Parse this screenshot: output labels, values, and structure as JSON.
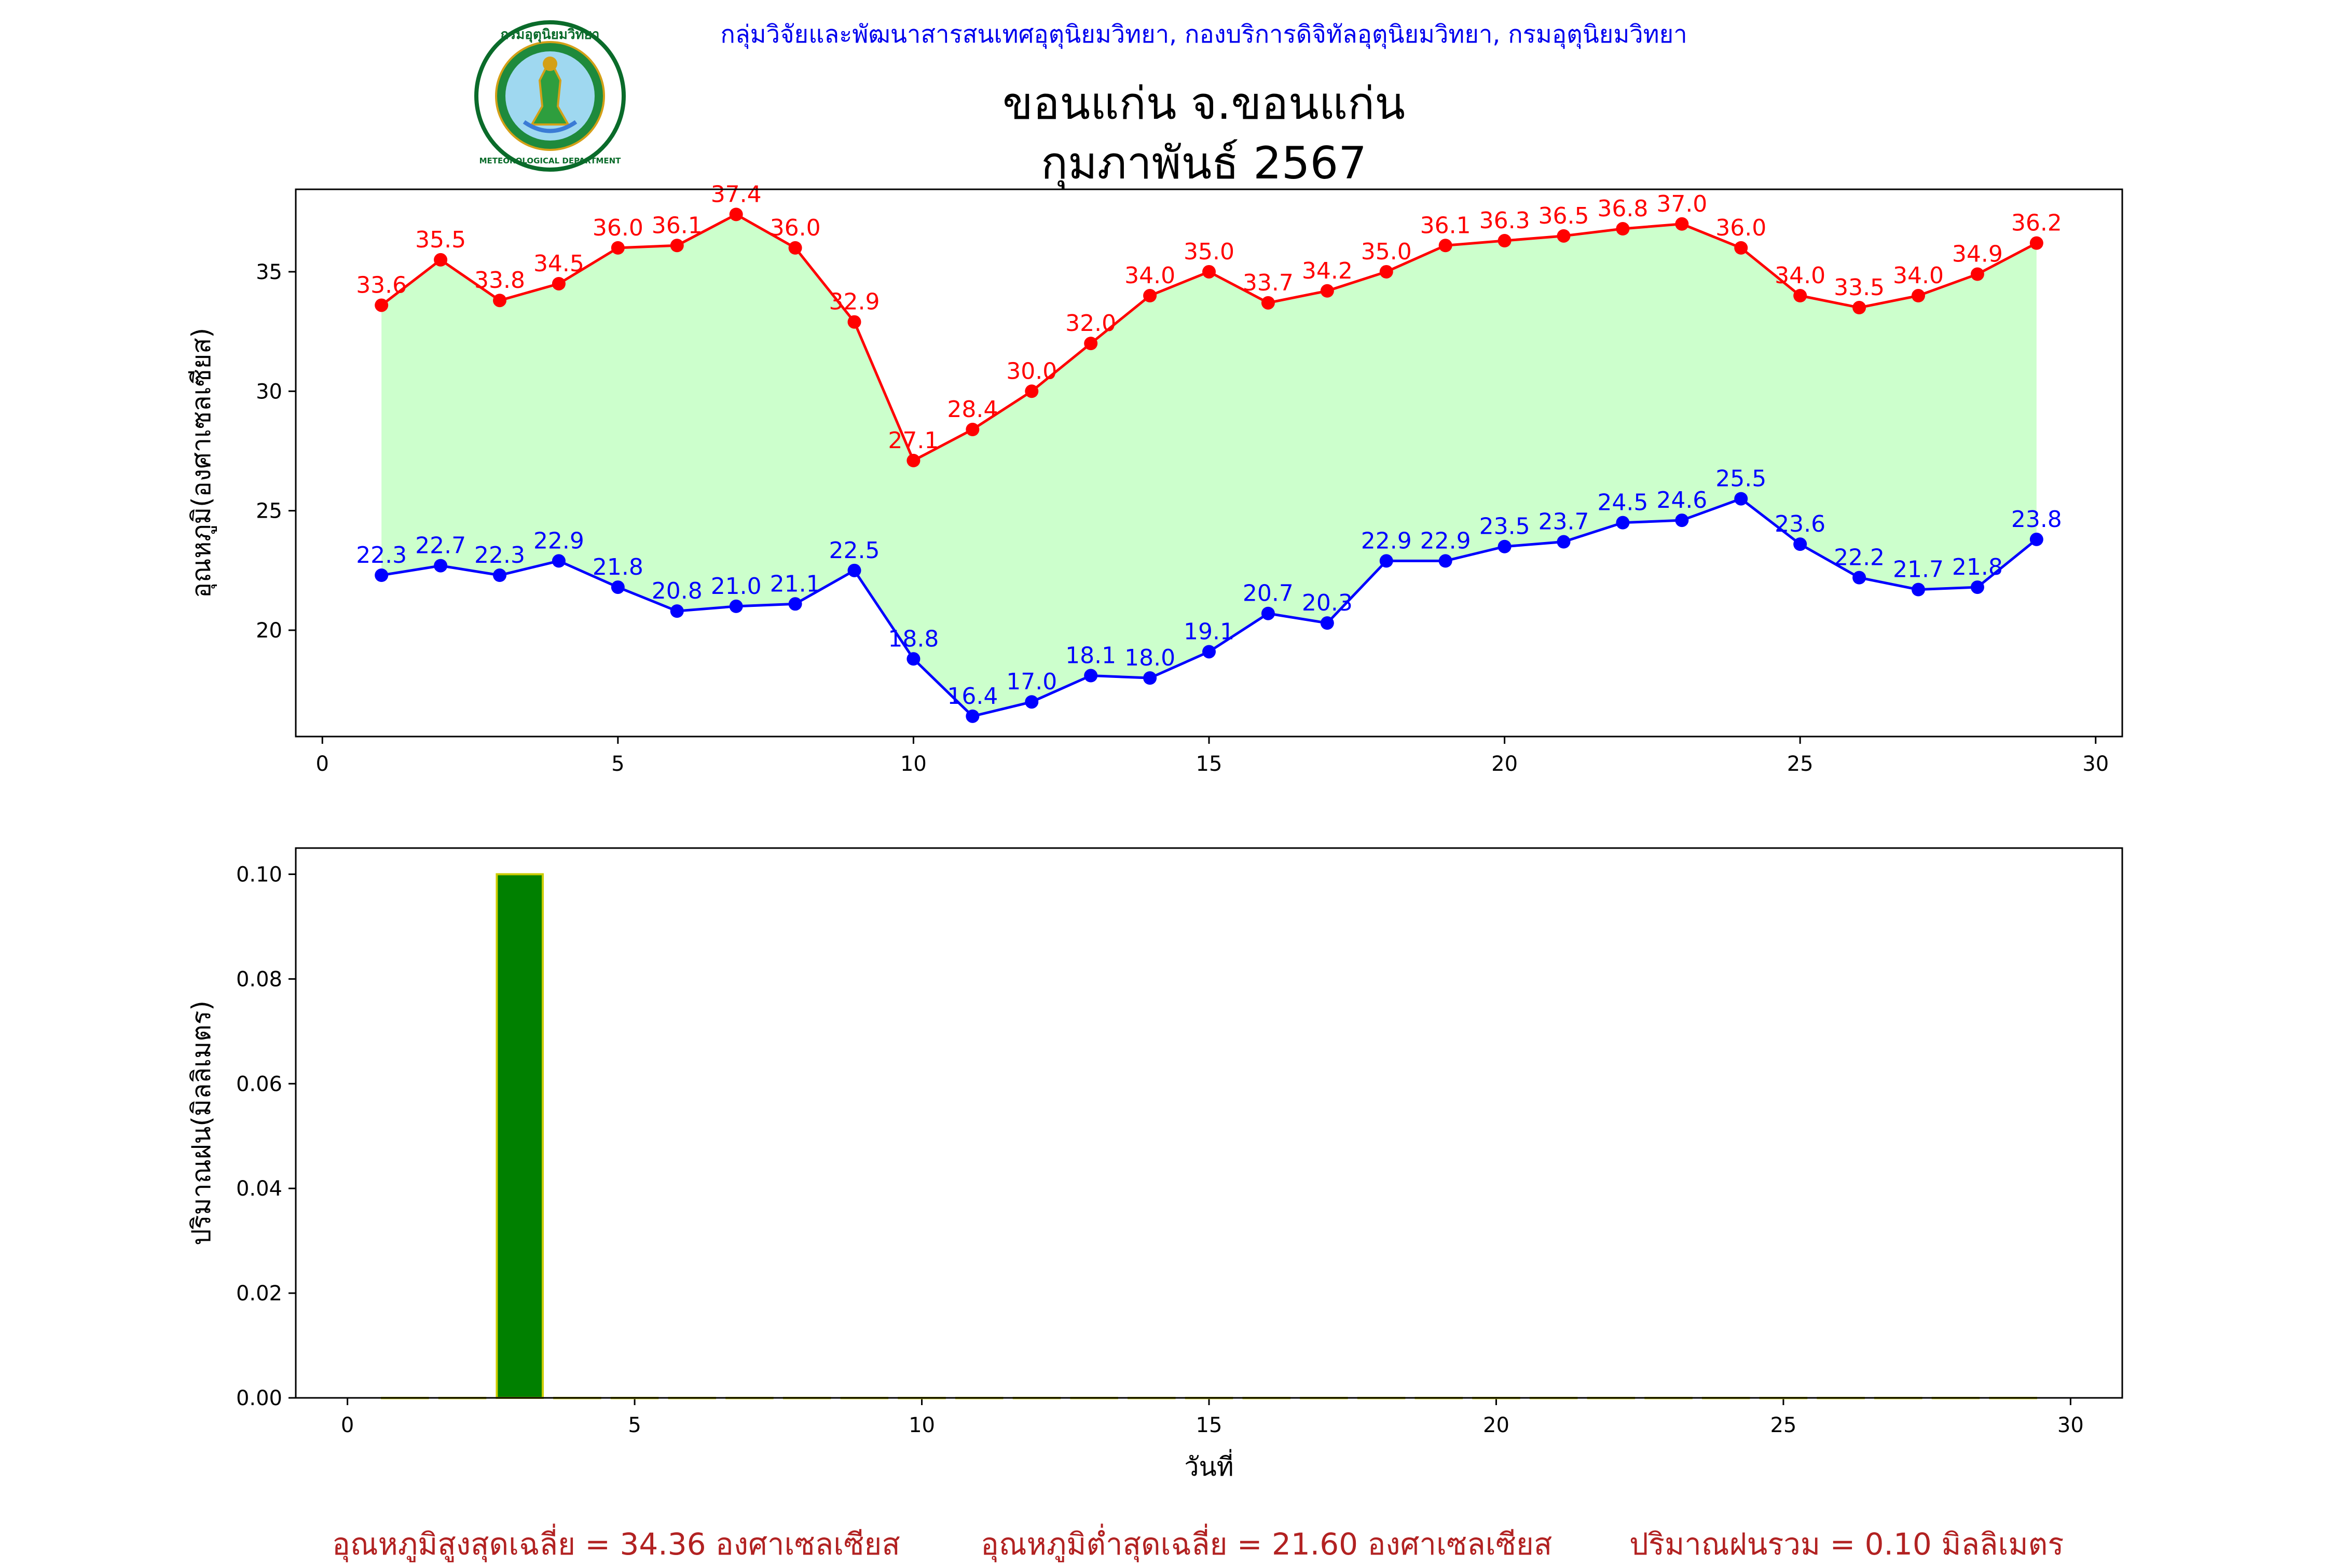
{
  "header": {
    "organization": "กลุ่มวิจัยและพัฒนาสารสนเทศอุตุนิยมวิทยา, กองบริการดิจิทัลอุตุนิยมวิทยา, กรมอุตุนิยมวิทยา",
    "station": "ขอนแก่น จ.ขอนแก่น",
    "period": "กุมภาพันธ์ 2567",
    "logo_text": "กรมอุตุนิยมวิทยา METEOROLOGICAL DEPARTMENT"
  },
  "chart_data": [
    {
      "type": "line",
      "xlabel": "",
      "ylabel": "อุณหภูมิ(องศาเซลเซียส)",
      "xlim": [
        -0.45,
        30.45
      ],
      "ylim": [
        15.55,
        38.45
      ],
      "xticks": [
        0,
        5,
        10,
        15,
        20,
        25,
        30
      ],
      "yticks": [
        20,
        25,
        30,
        35
      ],
      "fill_between": true,
      "fill_color": "#ccffcc",
      "grid": false,
      "x": [
        1,
        2,
        3,
        4,
        5,
        6,
        7,
        8,
        9,
        10,
        11,
        12,
        13,
        14,
        15,
        16,
        17,
        18,
        19,
        20,
        21,
        22,
        23,
        24,
        25,
        26,
        27,
        28,
        29
      ],
      "series": [
        {
          "color": "#ff0000",
          "values": [
            33.6,
            35.5,
            33.8,
            34.5,
            36.0,
            36.1,
            37.4,
            36.0,
            32.9,
            27.1,
            28.4,
            30.0,
            32.0,
            34.0,
            35.0,
            33.7,
            34.2,
            35.0,
            36.1,
            36.3,
            36.5,
            36.8,
            37.0,
            36.0,
            34.0,
            33.5,
            34.0,
            34.9,
            36.2
          ],
          "labels": [
            "33.6",
            "35.5",
            "33.8",
            "34.5",
            "36.0",
            "36.1",
            "37.4",
            "36.0",
            "32.9",
            "27.1",
            "28.4",
            "30.0",
            "32.0",
            "34.0",
            "35.0",
            "33.7",
            "34.2",
            "35.0",
            "36.1",
            "36.3",
            "36.5",
            "36.8",
            "37.0",
            "36.0",
            "34.0",
            "33.5",
            "34.0",
            "34.9",
            "36.2"
          ]
        },
        {
          "color": "#0000ff",
          "values": [
            22.3,
            22.7,
            22.3,
            22.9,
            21.8,
            20.8,
            21.0,
            21.1,
            22.5,
            18.8,
            16.4,
            17.0,
            18.1,
            18.0,
            19.1,
            20.7,
            20.3,
            22.9,
            22.9,
            23.5,
            23.7,
            24.5,
            24.6,
            25.5,
            23.6,
            22.2,
            21.7,
            21.8,
            23.8
          ],
          "labels": [
            "22.3",
            "22.7",
            "22.3",
            "22.9",
            "21.8",
            "20.8",
            "21.0",
            "21.1",
            "22.5",
            "18.8",
            "16.4",
            "17.0",
            "18.1",
            "18.0",
            "19.1",
            "20.7",
            "20.3",
            "22.9",
            "22.9",
            "23.5",
            "23.7",
            "24.5",
            "24.6",
            "25.5",
            "23.6",
            "22.2",
            "21.7",
            "21.8",
            "23.8"
          ]
        }
      ]
    },
    {
      "type": "bar",
      "xlabel": "วันที่",
      "ylabel": "ปริมาณฝน(มิลลิเมตร)",
      "xlim": [
        -0.9,
        30.9
      ],
      "ylim": [
        0,
        0.105
      ],
      "xticks": [
        0,
        5,
        10,
        15,
        20,
        25,
        30
      ],
      "yticks": [
        "0.00",
        "0.02",
        "0.04",
        "0.06",
        "0.08",
        "0.10"
      ],
      "bar_color": "#008000",
      "edge_color": "#cccc00",
      "grid": false,
      "x": [
        1,
        2,
        3,
        4,
        5,
        6,
        7,
        8,
        9,
        10,
        11,
        12,
        13,
        14,
        15,
        16,
        17,
        18,
        19,
        20,
        21,
        22,
        23,
        24,
        25,
        26,
        27,
        28,
        29
      ],
      "values": [
        0,
        0,
        0.1,
        0,
        0,
        0,
        0,
        0,
        0,
        0,
        0,
        0,
        0,
        0,
        0,
        0,
        0,
        0,
        0,
        0,
        0,
        0,
        0,
        0,
        0,
        0,
        0,
        0,
        0
      ]
    }
  ],
  "summary": {
    "avg_max": "อุณหภูมิสูงสุดเฉลี่ย = 34.36 องศาเซลเซียส",
    "avg_min": "อุณหภูมิต่ำสุดเฉลี่ย = 21.60 องศาเซลเซียส",
    "total_rain": "ปริมาณฝนรวม = 0.10 มิลลิเมตร"
  }
}
